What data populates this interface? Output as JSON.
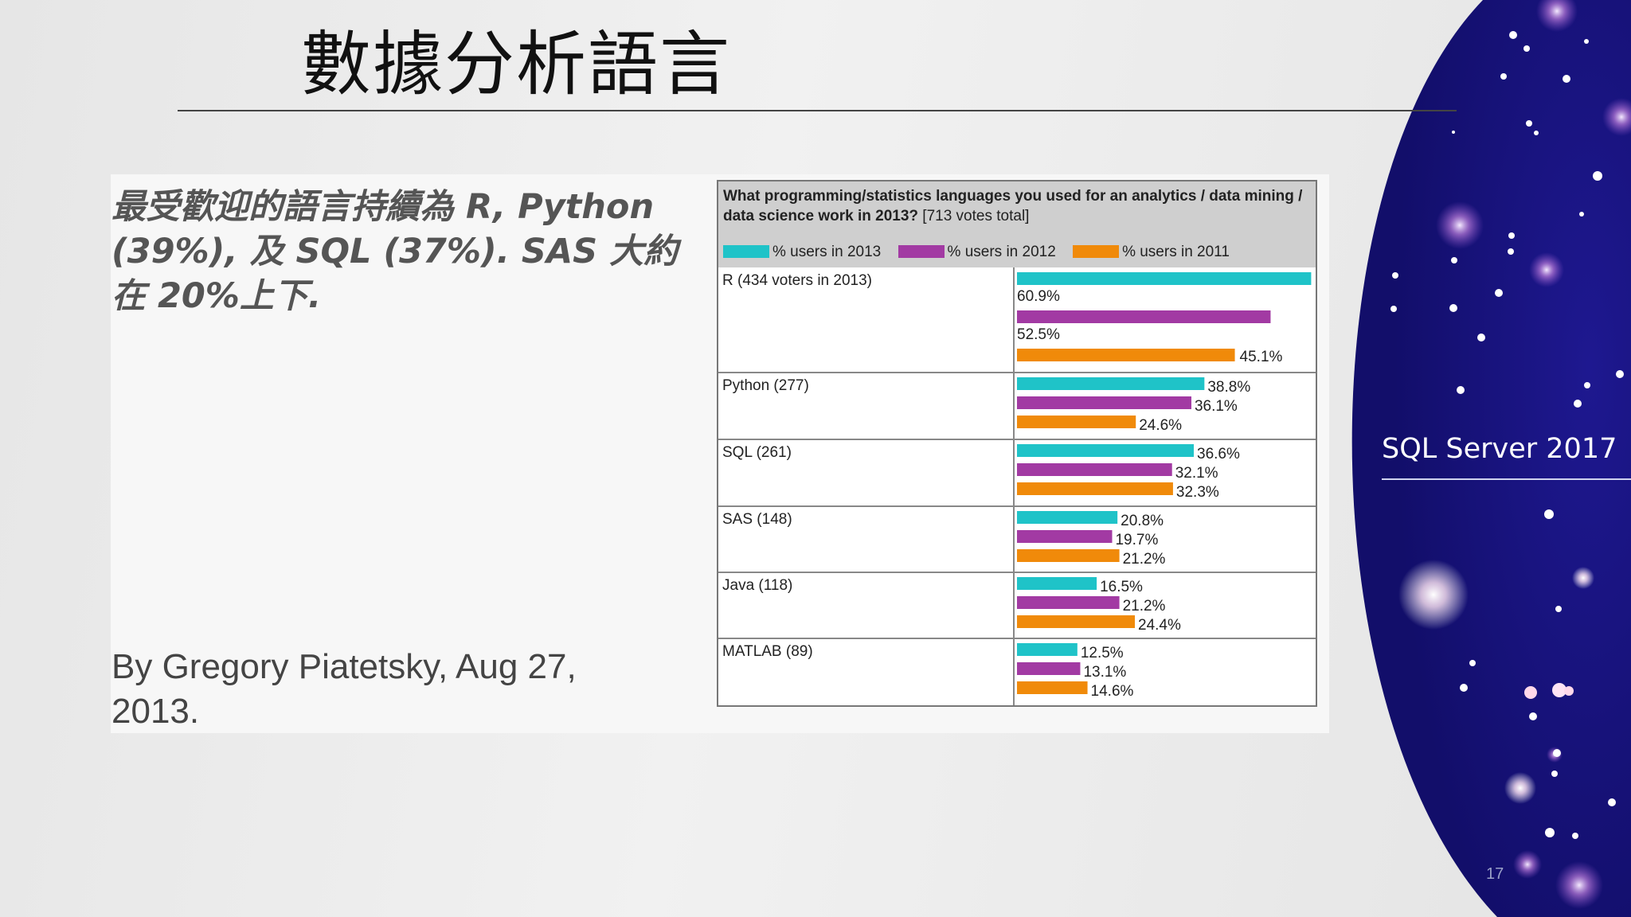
{
  "slide": {
    "title": "數據分析語言",
    "summary": "最受歡迎的語言持續為 R, Python (39%), 及 SQL (37%). SAS 大約在 20%上下.",
    "author": "By Gregory Piatetsky, Aug 27, 2013.",
    "product": "SQL Server 2017",
    "page_number": "17"
  },
  "colors": {
    "series_2013": "#1fc3c8",
    "series_2012": "#a23aa3",
    "series_2011": "#f08a0a",
    "side_panel": "#16117a"
  },
  "chart_data": {
    "type": "bar",
    "orientation": "horizontal",
    "title": "What programming/statistics languages you used for an analytics / data mining / data science work in 2013?",
    "title_note": "[713 votes total]",
    "categories": [
      "R (434 voters in 2013)",
      "Python (277)",
      "SQL (261)",
      "SAS (148)",
      "Java (118)",
      "MATLAB (89)"
    ],
    "series": [
      {
        "name": "% users in 2013",
        "values": [
          60.9,
          38.8,
          36.6,
          20.8,
          16.5,
          12.5
        ]
      },
      {
        "name": "% users in 2012",
        "values": [
          52.5,
          36.1,
          32.1,
          19.7,
          21.2,
          13.1
        ]
      },
      {
        "name": "% users in 2011",
        "values": [
          45.1,
          24.6,
          32.3,
          21.2,
          24.4,
          14.6
        ]
      }
    ],
    "value_labels": [
      [
        "60.9%",
        "38.8%",
        "36.6%",
        "20.8%",
        "16.5%",
        "12.5%"
      ],
      [
        "52.5%",
        "36.1%",
        "32.1%",
        "19.7%",
        "21.2%",
        "13.1%"
      ],
      [
        "45.1%",
        "24.6%",
        "32.3%",
        "21.2%",
        "24.4%",
        "14.6%"
      ]
    ],
    "xlim": [
      0,
      61
    ],
    "legend_position": "top",
    "grid": false
  }
}
